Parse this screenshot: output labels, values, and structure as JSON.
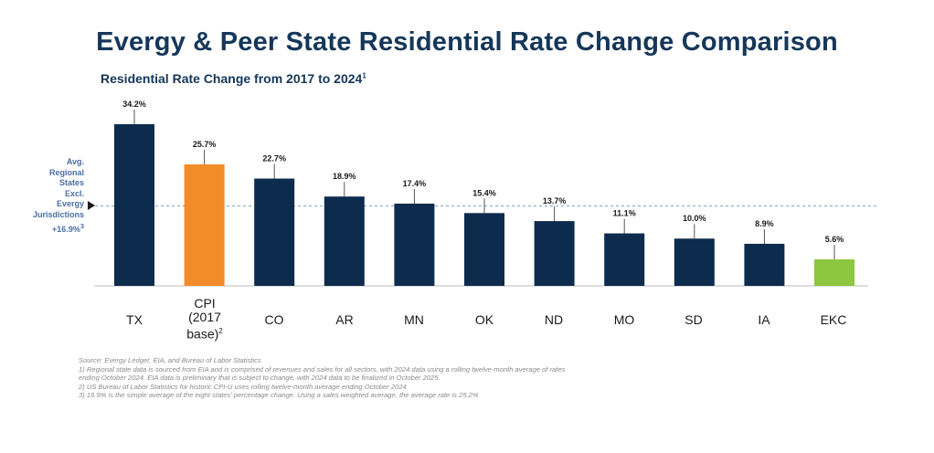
{
  "title": "Evergy & Peer State Residential Rate Change Comparison",
  "subtitle": "Residential Rate Change from 2017 to 2024",
  "subtitle_sup": "1",
  "avg_label": {
    "lines": [
      "Avg.",
      "Regional",
      "States",
      "Excl.",
      "Evergy",
      "Jurisdictions",
      "+16.9%"
    ],
    "sup": "3"
  },
  "chart_data": {
    "type": "bar",
    "title": "Residential Rate Change from 2017 to 2024",
    "categories": [
      "TX",
      "CPI (2017 base)",
      "CO",
      "AR",
      "MN",
      "OK",
      "ND",
      "MO",
      "SD",
      "IA",
      "EKC"
    ],
    "values": [
      34.2,
      25.7,
      22.7,
      18.9,
      17.4,
      15.4,
      13.7,
      11.1,
      10.0,
      8.9,
      5.6
    ],
    "data_labels": [
      "34.2%",
      "25.7%",
      "22.7%",
      "18.9%",
      "17.4%",
      "15.4%",
      "13.7%",
      "11.1%",
      "10.0%",
      "8.9%",
      "5.6%"
    ],
    "colors": [
      "#0d2b4d",
      "#f28c28",
      "#0d2b4d",
      "#0d2b4d",
      "#0d2b4d",
      "#0d2b4d",
      "#0d2b4d",
      "#0d2b4d",
      "#0d2b4d",
      "#0d2b4d",
      "#8dc63f"
    ],
    "reference_line": {
      "value": 16.9,
      "label": "Avg. Regional States Excl. Evergy Jurisdictions +16.9%"
    },
    "xlabel": "",
    "ylabel": "",
    "ylim": [
      0,
      36
    ],
    "grid": false
  },
  "category_labels": {
    "tx": "TX",
    "cpi_line1": "CPI",
    "cpi_line2": "(2017",
    "cpi_line3": "base)",
    "cpi_sup": "2",
    "co": "CO",
    "ar": "AR",
    "mn": "MN",
    "ok": "OK",
    "nd": "ND",
    "mo": "MO",
    "sd": "SD",
    "ia": "IA",
    "ekc": "EKC"
  },
  "footnotes": [
    "Source: Evergy Ledger, EIA, and Bureau of Labor Statistics",
    "1) Regional state data is sourced from EIA and is comprised of revenues and sales for all sectors, with 2024 data using a rolling twelve-month average of rates",
    "ending October 2024. EIA data is preliminary that is subject to change, with 2024 data to be finalized in October 2025.",
    "2) US Bureau of Labor Statistics for historic CPI-U uses rolling twelve-month average ending October 2024",
    "3) 16.9% is the simple average of the eight states' percentage change. Using a sales weighted average, the average rate is 25.2%"
  ]
}
